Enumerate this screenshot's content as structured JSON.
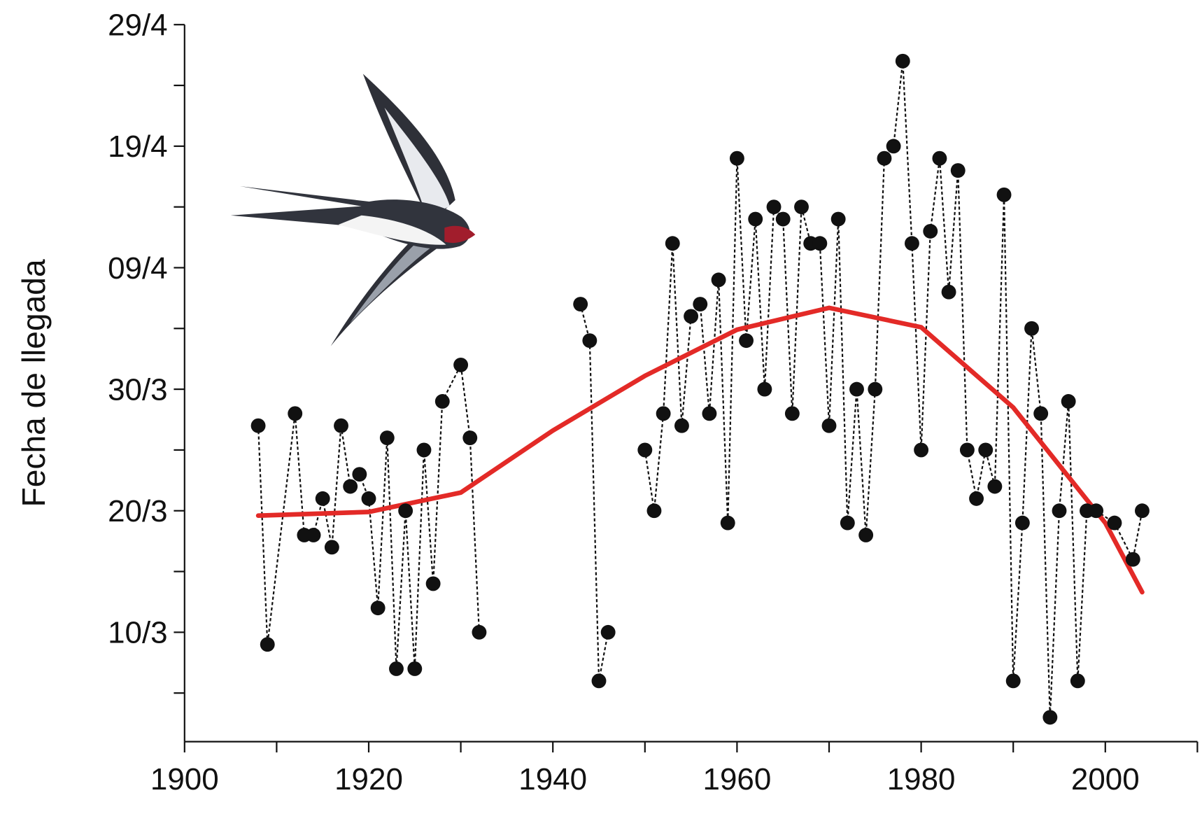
{
  "chart_data": {
    "type": "line",
    "ylabel": "Fecha de llegada",
    "x": [
      1908,
      1909,
      1912,
      1913,
      1914,
      1915,
      1916,
      1917,
      1918,
      1919,
      1920,
      1921,
      1922,
      1923,
      1924,
      1925,
      1926,
      1927,
      1928,
      1930,
      1931,
      1932,
      1933,
      1943,
      1944,
      1945,
      1946,
      1947,
      1950,
      1951,
      1952,
      1953,
      1954,
      1955,
      1956,
      1957,
      1958,
      1959,
      1960,
      1961,
      1962,
      1963,
      1964,
      1965,
      1966,
      1967,
      1968,
      1969,
      1970,
      1971,
      1972,
      1973,
      1974,
      1975,
      1976,
      1977,
      1978,
      1979,
      1980,
      1981,
      1982,
      1983,
      1984,
      1985,
      1986,
      1987,
      1988,
      1989,
      1990,
      1991,
      1992,
      1993,
      1994,
      1995,
      1996,
      1997,
      1998,
      1999,
      2001,
      2003,
      2004
    ],
    "values": [
      86,
      68,
      87,
      77,
      77,
      80,
      76,
      86,
      81,
      82,
      80,
      71,
      85,
      66,
      79,
      66,
      84,
      73,
      88,
      91,
      85,
      69,
      null,
      96,
      93,
      65,
      69,
      null,
      84,
      79,
      87,
      101,
      86,
      95,
      96,
      87,
      98,
      78,
      108,
      93,
      103,
      89,
      104,
      103,
      87,
      104,
      101,
      101,
      86,
      103,
      78,
      89,
      77,
      89,
      108,
      109,
      116,
      101,
      84,
      102,
      108,
      97,
      107,
      84,
      80,
      84,
      81,
      105,
      65,
      78,
      94,
      87,
      62,
      79,
      88,
      65,
      79,
      79,
      78,
      75,
      79
    ],
    "color": "#111111",
    "trend": {
      "x": [
        1908,
        1920,
        1930,
        1940,
        1950,
        1960,
        1970,
        1980,
        1990,
        2000,
        2004
      ],
      "values": [
        78.6,
        78.9,
        80.5,
        85.6,
        90.1,
        93.9,
        95.7,
        94.1,
        87.5,
        78.0,
        72.3
      ],
      "color": "#e32a27"
    },
    "xlim": [
      1900,
      2010
    ],
    "ylim": [
      60,
      119
    ],
    "xticks": [
      1900,
      1920,
      1940,
      1960,
      1980,
      2000
    ],
    "xminorticks": [
      1910,
      1930,
      1950,
      1970,
      1990,
      2010
    ],
    "yticks": [
      {
        "value": 69,
        "label": "10/3"
      },
      {
        "value": 79,
        "label": "20/3"
      },
      {
        "value": 89,
        "label": "30/3"
      },
      {
        "value": 99,
        "label": "09/4"
      },
      {
        "value": 109,
        "label": "19/4"
      },
      {
        "value": 119,
        "label": "29/4"
      }
    ],
    "yminorticks": [
      64,
      74,
      84,
      94,
      104,
      114
    ]
  }
}
